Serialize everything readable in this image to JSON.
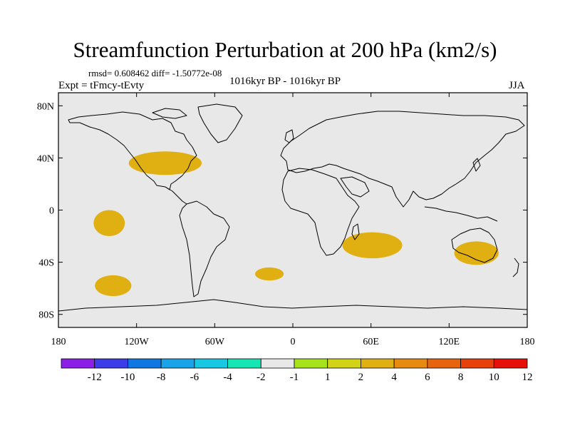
{
  "title": "Streamfunction Perturbation at 200 hPa (km2/s)",
  "stats_text": "rmsd= 0.608462  diff= -1.50772e-08",
  "experiment": "Expt = tFmcy-tEvty",
  "period": "1016kyr BP - 1016kyr BP",
  "season": "JJA",
  "map": {
    "lat_ticks": [
      {
        "value": 80,
        "label": "80N"
      },
      {
        "value": 40,
        "label": "40N"
      },
      {
        "value": 0,
        "label": "0"
      },
      {
        "value": -40,
        "label": "40S"
      },
      {
        "value": -80,
        "label": "80S"
      }
    ],
    "lon_ticks": [
      {
        "value": -180,
        "label": "180"
      },
      {
        "value": -120,
        "label": "120W"
      },
      {
        "value": -60,
        "label": "60W"
      },
      {
        "value": 0,
        "label": "0"
      },
      {
        "value": 60,
        "label": "60E"
      },
      {
        "value": 120,
        "label": "120E"
      },
      {
        "value": 180,
        "label": "180"
      }
    ],
    "background_color": "#e8e8e8",
    "anomaly_regions": [
      {
        "name": "north-pacific",
        "lon": -175,
        "lat": 30,
        "rlon": 9,
        "rlat": 6,
        "level": "-2"
      },
      {
        "name": "north-atlantic-usa",
        "lon": -98,
        "lat": 36,
        "rlon": 28,
        "rlat": 9,
        "level": "2"
      },
      {
        "name": "west-siberia",
        "lon": 60,
        "lat": 47,
        "rlon": 16,
        "rlat": 10,
        "level": "-2"
      },
      {
        "name": "east-pacific-equatorial",
        "lon": -141,
        "lat": -10,
        "rlon": 12,
        "rlat": 10,
        "level": "2"
      },
      {
        "name": "south-pacific-wide",
        "lon": -80,
        "lat": -24,
        "rlon": 54,
        "rlat": 10,
        "level": "-2"
      },
      {
        "name": "south-pacific-west",
        "lon": -163,
        "lat": -35,
        "rlon": 9,
        "rlat": 4,
        "level": "-2"
      },
      {
        "name": "south-indian-ocean",
        "lon": 61,
        "lat": -27,
        "rlon": 23,
        "rlat": 10,
        "level": "2"
      },
      {
        "name": "south-atlantic-sw",
        "lon": -18,
        "lat": -49,
        "rlon": 11,
        "rlat": 5,
        "level": "2"
      },
      {
        "name": "south-atlantic-se",
        "lon": 47,
        "lat": -50,
        "rlon": 7,
        "rlat": 3,
        "level": "-2"
      },
      {
        "name": "south-pacific-far",
        "lon": -138,
        "lat": -58,
        "rlon": 14,
        "rlat": 8,
        "level": "2"
      },
      {
        "name": "australia-south",
        "lon": 141,
        "lat": -33,
        "rlon": 17,
        "rlat": 9,
        "level": "2"
      },
      {
        "name": "east-edge",
        "lon": 178,
        "lat": 30,
        "rlon": 4,
        "rlat": 5,
        "level": "-2"
      },
      {
        "name": "atlantic-small",
        "lon": -33,
        "lat": 21,
        "rlon": 2,
        "rlat": 1.2,
        "level": "-2"
      }
    ]
  },
  "colorbar": {
    "colors": [
      "#8b1fe8",
      "#3c3ce8",
      "#0f78e0",
      "#1aa3e8",
      "#18c8e3",
      "#15e6b4",
      "#e8e8e8",
      "#a6e31c",
      "#d2d317",
      "#e0b013",
      "#e68a10",
      "#e6640e",
      "#e6400b",
      "#e6100a"
    ],
    "labels": [
      "-12",
      "-10",
      "-8",
      "-6",
      "-4",
      "-2",
      "-1",
      "1",
      "2",
      "4",
      "6",
      "8",
      "10",
      "12"
    ]
  }
}
